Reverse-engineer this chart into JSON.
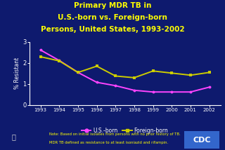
{
  "title_lines": [
    "Primary MDR TB in",
    "U.S.-born vs. Foreign-born",
    "Persons, United States, 1993-2002"
  ],
  "years": [
    1993,
    1994,
    1995,
    1996,
    1997,
    1998,
    1999,
    2000,
    2001,
    2002
  ],
  "us_born": [
    2.62,
    2.12,
    1.55,
    1.08,
    0.92,
    0.7,
    0.62,
    0.62,
    0.62,
    0.85
  ],
  "foreign_born": [
    2.3,
    2.1,
    1.55,
    1.85,
    1.38,
    1.3,
    1.62,
    1.52,
    1.42,
    1.55
  ],
  "bg_color": "#0e1a6e",
  "title_color": "#ffff00",
  "axis_color": "#ffffff",
  "tick_color": "#ffffff",
  "us_color": "#ff44ff",
  "foreign_color": "#cccc00",
  "ylabel": "% Resistant",
  "ylim": [
    0,
    3
  ],
  "yticks": [
    0,
    1,
    2,
    3
  ],
  "note_line1": "Note: Based on initial isolates from persons with no prior history of TB.",
  "note_line2": "MDR TB defined as resistance to at least isoniazid and rifampin.",
  "note_color": "#ffff00",
  "legend_us": "U.S.-born",
  "legend_foreign": "Foreign-born",
  "cdc_bg": "#3366cc",
  "cdc_text": "CDC"
}
